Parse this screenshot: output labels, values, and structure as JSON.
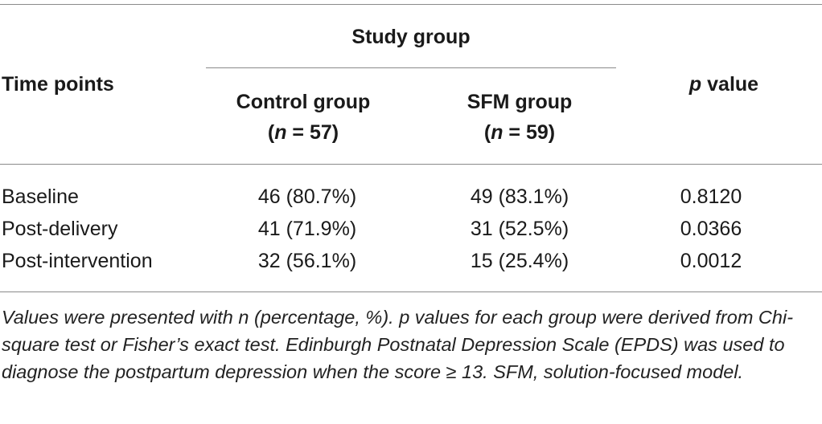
{
  "table": {
    "header": {
      "time_points": "Time points",
      "study_group": "Study group",
      "control_group": "Control group",
      "control_n_label": "n",
      "control_n_value": " = 57",
      "sfm_group": "SFM group",
      "sfm_n_label": "n",
      "sfm_n_value": " = 59",
      "p_label": "p",
      "p_value_word": " value"
    },
    "rows": [
      {
        "time_point": "Baseline",
        "control": "46 (80.7%)",
        "sfm": "49 (83.1%)",
        "p": "0.8120"
      },
      {
        "time_point": "Post-delivery",
        "control": "41 (71.9%)",
        "sfm": "31 (52.5%)",
        "p": "0.0366"
      },
      {
        "time_point": "Post-intervention",
        "control": "32 (56.1%)",
        "sfm": "15 (25.4%)",
        "p": "0.0012"
      }
    ],
    "footnote": "Values were presented with n (percentage, %). p values for each group were derived from Chi-square test or Fisher’s exact test. Edinburgh Postnatal Depression Scale (EPDS) was used to diagnose the postpartum depression when the score ≥ 13. SFM, solution-focused model."
  }
}
